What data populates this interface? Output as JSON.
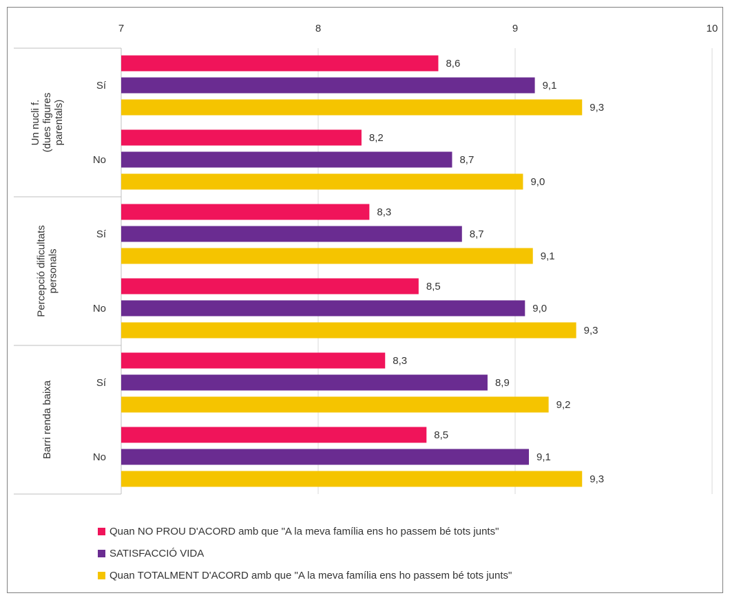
{
  "chart_data": {
    "type": "bar",
    "orientation": "horizontal",
    "xlim": [
      7,
      10
    ],
    "x_ticks": [
      "7",
      "8",
      "9",
      "10"
    ],
    "x_tick_values": [
      7,
      8,
      9,
      10
    ],
    "grid": true,
    "legend_position": "bottom",
    "groups": [
      {
        "label": "Un nucli f. (dues figures parentals)",
        "label_lines": [
          "Un nucli f.",
          "(dues figures",
          "parentals)"
        ]
      },
      {
        "label": "Percepció dificultats personals",
        "label_lines": [
          "Percepció dificultats",
          "personals"
        ]
      },
      {
        "label": "Barri renda baixa",
        "label_lines": [
          "Barri renda baixa"
        ]
      }
    ],
    "categories": [
      {
        "group": 0,
        "label": "Sí"
      },
      {
        "group": 0,
        "label": "No"
      },
      {
        "group": 1,
        "label": "Sí"
      },
      {
        "group": 1,
        "label": "No"
      },
      {
        "group": 2,
        "label": "Sí"
      },
      {
        "group": 2,
        "label": "No"
      }
    ],
    "series": [
      {
        "name": "Quan NO PROU D'ACORD amb que \"A la meva família ens ho passem bé tots junts\"",
        "color": "#f0145a",
        "values": [
          8.61,
          8.22,
          8.26,
          8.51,
          8.34,
          8.55
        ],
        "labels": [
          "8,6",
          "8,2",
          "8,3",
          "8,5",
          "8,3",
          "8,5"
        ]
      },
      {
        "name": "SATISFACCIÓ VIDA",
        "color": "#6a2c91",
        "values": [
          9.1,
          8.68,
          8.73,
          9.05,
          8.86,
          9.07
        ],
        "labels": [
          "9,1",
          "8,7",
          "8,7",
          "9,0",
          "8,9",
          "9,1"
        ]
      },
      {
        "name": "Quan TOTALMENT D'ACORD amb que \"A la meva família ens ho passem bé tots junts\"",
        "color": "#f5c400",
        "values": [
          9.34,
          9.04,
          9.09,
          9.31,
          9.17,
          9.34
        ],
        "labels": [
          "9,3",
          "9,0",
          "9,1",
          "9,3",
          "9,2",
          "9,3"
        ]
      }
    ]
  }
}
